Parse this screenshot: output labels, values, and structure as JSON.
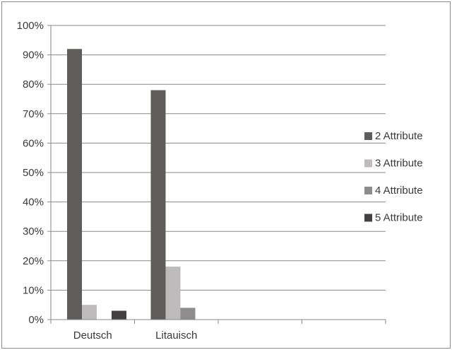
{
  "chart_data": {
    "type": "bar",
    "title": "",
    "xlabel": "",
    "ylabel": "",
    "categories": [
      "Deutsch",
      "Litauisch",
      "",
      ""
    ],
    "series": [
      {
        "name": "2 Attribute",
        "color": "#5f5c5c",
        "values": [
          92,
          78,
          null,
          null
        ]
      },
      {
        "name": "3 Attribute",
        "color": "#bdbbbb",
        "values": [
          5,
          18,
          null,
          null
        ]
      },
      {
        "name": "4 Attribute",
        "color": "#8e8c8c",
        "values": [
          0,
          4,
          null,
          null
        ]
      },
      {
        "name": "5 Attribute",
        "color": "#424040",
        "values": [
          3,
          0,
          null,
          null
        ]
      }
    ],
    "ylim": [
      0,
      100
    ],
    "yticks": [
      "0%",
      "10%",
      "20%",
      "30%",
      "40%",
      "50%",
      "60%",
      "70%",
      "80%",
      "90%",
      "100%"
    ],
    "grid": true,
    "legend_position": "right"
  }
}
